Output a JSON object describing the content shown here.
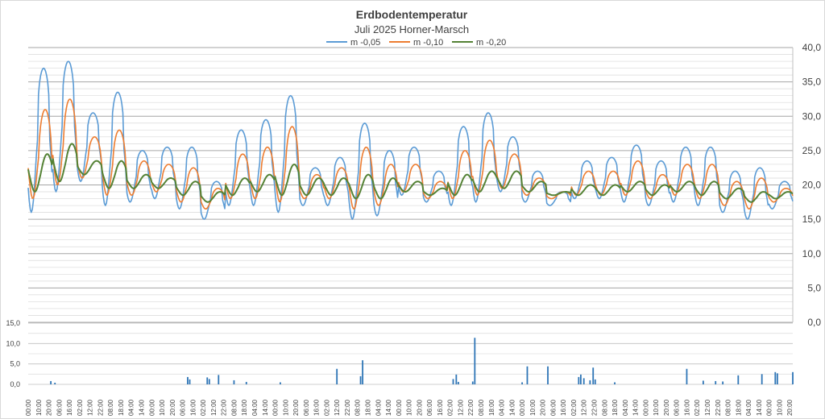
{
  "chart_data": {
    "type": "line",
    "title": "Erdbodentemperatur",
    "subtitle": "Juli 2025 Horner-Marsch",
    "legend_position": "top",
    "grid": true,
    "temperature": {
      "ylim": [
        0,
        40
      ],
      "y_ticks": [
        "0,0",
        "5,0",
        "10,0",
        "15,0",
        "20,0",
        "25,0",
        "30,0",
        "35,0",
        "40,0"
      ],
      "y_axis_side": "right",
      "x_range_hours": [
        0,
        743
      ],
      "series": [
        {
          "name": "m -0,05",
          "color": "#5b9bd5",
          "daily_min": [
            16.0,
            19.0,
            20.5,
            17.0,
            17.5,
            18.0,
            16.5,
            15.0,
            17.0,
            17.0,
            16.0,
            17.0,
            17.0,
            15.0,
            15.5,
            18.5,
            17.5,
            17.0,
            17.5,
            19.0,
            17.5,
            17.0,
            18.0,
            18.0,
            17.5,
            17.0,
            17.5,
            17.0,
            16.0,
            15.0,
            16.5
          ],
          "daily_max": [
            37.0,
            38.0,
            30.5,
            33.5,
            25.0,
            25.5,
            25.5,
            20.5,
            28.0,
            29.5,
            33.0,
            22.5,
            24.0,
            29.0,
            25.0,
            25.5,
            22.0,
            28.5,
            30.5,
            27.0,
            22.0,
            19.0,
            23.5,
            24.0,
            25.8,
            23.5,
            25.5,
            25.5,
            22.0,
            22.5,
            20.5
          ]
        },
        {
          "name": "m -0,10",
          "color": "#ed7d31",
          "daily_min": [
            18.0,
            20.0,
            21.0,
            18.5,
            18.5,
            19.0,
            17.5,
            16.5,
            18.0,
            18.0,
            17.5,
            18.0,
            18.0,
            16.5,
            17.0,
            19.0,
            18.0,
            18.0,
            18.5,
            19.5,
            18.5,
            18.0,
            18.5,
            18.5,
            18.5,
            18.0,
            18.5,
            18.0,
            17.0,
            16.5,
            17.5
          ],
          "daily_max": [
            31.0,
            32.5,
            27.0,
            28.0,
            23.5,
            23.0,
            22.5,
            19.5,
            24.5,
            25.5,
            28.5,
            21.5,
            22.5,
            25.5,
            23.0,
            23.0,
            20.5,
            25.0,
            26.5,
            24.5,
            21.0,
            19.0,
            22.0,
            22.0,
            23.5,
            21.5,
            23.0,
            23.0,
            20.5,
            21.0,
            19.5
          ]
        },
        {
          "name": "m -0,20",
          "color": "#548235",
          "daily_min": [
            19.0,
            20.5,
            21.5,
            19.5,
            19.5,
            19.5,
            18.5,
            17.5,
            18.5,
            19.0,
            18.5,
            18.5,
            18.5,
            18.0,
            18.0,
            19.0,
            18.5,
            18.5,
            19.0,
            19.5,
            19.0,
            18.5,
            18.5,
            18.5,
            19.0,
            18.5,
            19.0,
            18.5,
            18.0,
            17.5,
            18.0
          ],
          "daily_max": [
            24.5,
            26.0,
            23.5,
            23.5,
            21.5,
            21.0,
            20.5,
            19.0,
            21.0,
            21.5,
            23.0,
            21.0,
            21.0,
            21.5,
            21.0,
            20.5,
            19.5,
            21.5,
            22.0,
            22.0,
            20.5,
            19.0,
            20.0,
            20.0,
            20.5,
            20.0,
            20.5,
            20.5,
            19.5,
            19.0,
            19.0
          ]
        }
      ]
    },
    "precipitation": {
      "ylim": [
        0,
        15
      ],
      "y_ticks": [
        "0,0",
        "5,0",
        "10,0",
        "15,0"
      ],
      "y_axis_side": "left",
      "color": "#2e75b6",
      "bars": [
        {
          "hour": 22,
          "value": 0.8
        },
        {
          "hour": 26,
          "value": 0.4
        },
        {
          "hour": 155,
          "value": 1.8
        },
        {
          "hour": 157,
          "value": 1.2
        },
        {
          "hour": 174,
          "value": 1.7
        },
        {
          "hour": 176,
          "value": 1.3
        },
        {
          "hour": 185,
          "value": 2.3
        },
        {
          "hour": 200,
          "value": 1.0
        },
        {
          "hour": 212,
          "value": 0.6
        },
        {
          "hour": 245,
          "value": 0.5
        },
        {
          "hour": 300,
          "value": 3.8
        },
        {
          "hour": 325,
          "value": 5.9
        },
        {
          "hour": 323,
          "value": 2.0
        },
        {
          "hour": 413,
          "value": 1.3
        },
        {
          "hour": 416,
          "value": 2.4
        },
        {
          "hour": 418,
          "value": 0.6
        },
        {
          "hour": 434,
          "value": 11.4
        },
        {
          "hour": 432,
          "value": 0.7
        },
        {
          "hour": 480,
          "value": 0.5
        },
        {
          "hour": 485,
          "value": 4.4
        },
        {
          "hour": 505,
          "value": 4.4
        },
        {
          "hour": 535,
          "value": 1.8
        },
        {
          "hour": 537,
          "value": 2.4
        },
        {
          "hour": 540,
          "value": 1.5
        },
        {
          "hour": 546,
          "value": 1.0
        },
        {
          "hour": 549,
          "value": 4.1
        },
        {
          "hour": 551,
          "value": 1.2
        },
        {
          "hour": 570,
          "value": 0.5
        },
        {
          "hour": 640,
          "value": 3.8
        },
        {
          "hour": 656,
          "value": 0.9
        },
        {
          "hour": 668,
          "value": 0.8
        },
        {
          "hour": 675,
          "value": 0.7
        },
        {
          "hour": 690,
          "value": 2.2
        },
        {
          "hour": 713,
          "value": 2.5
        },
        {
          "hour": 726,
          "value": 3.0
        },
        {
          "hour": 728,
          "value": 2.7
        },
        {
          "hour": 743,
          "value": 3.0
        }
      ]
    },
    "x_tick_labels": [
      "00:00",
      "10:00",
      "20:00",
      "06:00",
      "16:00",
      "02:00",
      "12:00",
      "22:00",
      "08:00",
      "18:00",
      "04:00",
      "14:00",
      "00:00",
      "10:00",
      "20:00",
      "06:00",
      "16:00",
      "02:00",
      "12:00",
      "22:00",
      "08:00",
      "18:00",
      "04:00",
      "14:00",
      "00:00",
      "10:00",
      "20:00",
      "06:00",
      "16:00",
      "02:00",
      "12:00",
      "22:00",
      "08:00",
      "18:00",
      "04:00",
      "14:00",
      "00:00",
      "10:00",
      "20:00",
      "06:00",
      "16:00",
      "02:00",
      "12:00",
      "22:00",
      "08:00",
      "18:00",
      "04:00",
      "14:00",
      "00:00",
      "10:00",
      "20:00",
      "06:00",
      "16:00",
      "02:00",
      "12:00",
      "22:00",
      "08:00",
      "18:00",
      "04:00",
      "14:00",
      "00:00",
      "10:00",
      "20:00",
      "06:00",
      "16:00",
      "02:00",
      "12:00",
      "22:00",
      "08:00",
      "18:00",
      "04:00",
      "14:00",
      "00:00",
      "10:00",
      "20:00"
    ],
    "x_tick_step_hours": 10
  }
}
